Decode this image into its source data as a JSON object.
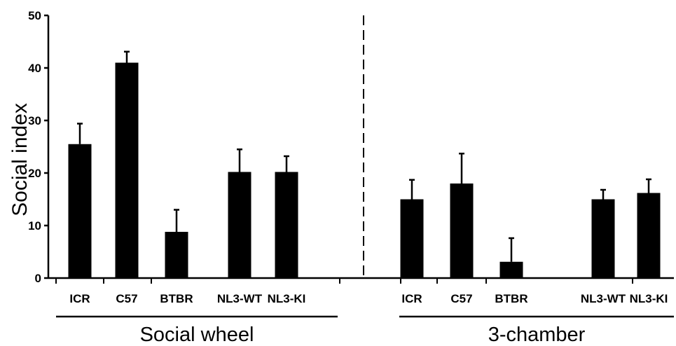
{
  "chart_data": {
    "type": "bar",
    "ylabel": "Social index",
    "xlabel": "",
    "ylim": [
      0,
      50
    ],
    "yticks": [
      0,
      10,
      20,
      30,
      40,
      50
    ],
    "grid": false,
    "bar_color": "#000000",
    "groups": [
      {
        "name": "Social wheel",
        "categories": [
          "ICR",
          "C57",
          "BTBR",
          "NL3-WT",
          "NL3-KI"
        ],
        "values": [
          25.5,
          41,
          8.8,
          20.2,
          20.2
        ],
        "errors": [
          3.9,
          2.1,
          4.2,
          4.3,
          3.0
        ]
      },
      {
        "name": "3-chamber",
        "categories": [
          "ICR",
          "C57",
          "BTBR",
          "NL3-WT",
          "NL3-KI"
        ],
        "values": [
          15,
          18,
          3.1,
          15,
          16.2
        ],
        "errors": [
          3.7,
          5.7,
          4.5,
          1.8,
          2.6
        ]
      }
    ]
  }
}
